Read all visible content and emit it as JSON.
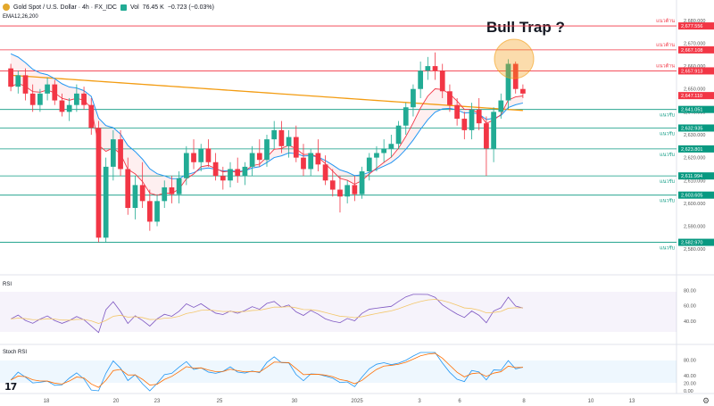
{
  "header": {
    "symbol": "Gold Spot / U.S. Dollar · 4h · FX_IDC",
    "vol_label": "Vol",
    "vol_value": "76.45 K",
    "change": "−0.723 (−0.03%)",
    "ema_label": "EMA12,26,200"
  },
  "annotation": "Bull Trap ?",
  "panes": {
    "rsi": "RSI",
    "stoch": "Stoch RSI"
  },
  "branding": "17",
  "settings_icon": "gear-icon",
  "colors": {
    "up": "#22ab94",
    "down": "#f23645",
    "ema_fast": "#f23645",
    "ema_mid": "#2196f3",
    "ema_slow": "#f39c12",
    "line": "#089981",
    "resist": "#f23645",
    "rsi": "#7e57c2",
    "osc_bg": "#e8f4fd"
  },
  "chart_data": {
    "type": "line",
    "title": "",
    "ylim": [
      2575,
      2685
    ],
    "y_ticks": [
      "2,680.000",
      "2,670.000",
      "2,660.000",
      "2,650.000",
      "2,640.000",
      "2,630.000",
      "2,620.000",
      "2,610.000",
      "2,600.000",
      "2,590.000",
      "2,580.000"
    ],
    "x_ticks": [
      "18",
      "20",
      "23",
      "25",
      "30",
      "2025",
      "3",
      "6",
      "8",
      "10",
      "13"
    ],
    "resistance_levels": [
      {
        "label": "แนวต้าน",
        "value": "2,677.556"
      },
      {
        "label": "แนวต้าน",
        "value": "2,667.108"
      },
      {
        "label": "แนวต้าน",
        "value": "2,657.913"
      }
    ],
    "support_levels": [
      {
        "label": "แนวรับ",
        "value": "2,641.051"
      },
      {
        "label": "แนวรับ",
        "value": "2,632.935"
      },
      {
        "label": "แนวรับ",
        "value": "2,623.801"
      },
      {
        "label": "แนวรับ",
        "value": "2,611.994"
      },
      {
        "label": "แนวรับ",
        "value": "2,603.605"
      },
      {
        "label": "แนวรับ",
        "value": "2,582.970"
      }
    ],
    "last_price": "2,647.110",
    "candles": [
      [
        2659,
        2661,
        2649,
        2651
      ],
      [
        2651,
        2658,
        2648,
        2656
      ],
      [
        2656,
        2659,
        2645,
        2648
      ],
      [
        2648,
        2652,
        2640,
        2643
      ],
      [
        2643,
        2650,
        2640,
        2648
      ],
      [
        2648,
        2655,
        2645,
        2652
      ],
      [
        2652,
        2654,
        2643,
        2645
      ],
      [
        2645,
        2648,
        2638,
        2640
      ],
      [
        2640,
        2646,
        2636,
        2643
      ],
      [
        2643,
        2652,
        2640,
        2648
      ],
      [
        2648,
        2651,
        2641,
        2643
      ],
      [
        2643,
        2646,
        2630,
        2633
      ],
      [
        2633,
        2636,
        2583,
        2585
      ],
      [
        2585,
        2620,
        2583,
        2616
      ],
      [
        2616,
        2632,
        2610,
        2628
      ],
      [
        2628,
        2632,
        2612,
        2615
      ],
      [
        2615,
        2620,
        2595,
        2598
      ],
      [
        2598,
        2612,
        2593,
        2608
      ],
      [
        2608,
        2618,
        2598,
        2601
      ],
      [
        2601,
        2606,
        2588,
        2592
      ],
      [
        2592,
        2604,
        2590,
        2601
      ],
      [
        2601,
        2610,
        2598,
        2607
      ],
      [
        2607,
        2612,
        2600,
        2604
      ],
      [
        2604,
        2614,
        2600,
        2611
      ],
      [
        2611,
        2625,
        2608,
        2622
      ],
      [
        2622,
        2628,
        2615,
        2618
      ],
      [
        2618,
        2626,
        2614,
        2624
      ],
      [
        2624,
        2628,
        2616,
        2618
      ],
      [
        2618,
        2622,
        2610,
        2612
      ],
      [
        2612,
        2616,
        2606,
        2610
      ],
      [
        2610,
        2618,
        2607,
        2615
      ],
      [
        2615,
        2620,
        2609,
        2612
      ],
      [
        2612,
        2618,
        2608,
        2616
      ],
      [
        2616,
        2625,
        2612,
        2622
      ],
      [
        2622,
        2628,
        2616,
        2619
      ],
      [
        2619,
        2630,
        2616,
        2628
      ],
      [
        2628,
        2636,
        2624,
        2632
      ],
      [
        2632,
        2636,
        2622,
        2625
      ],
      [
        2625,
        2632,
        2620,
        2629
      ],
      [
        2629,
        2634,
        2618,
        2620
      ],
      [
        2620,
        2626,
        2612,
        2615
      ],
      [
        2615,
        2624,
        2612,
        2622
      ],
      [
        2622,
        2628,
        2614,
        2617
      ],
      [
        2617,
        2621,
        2608,
        2610
      ],
      [
        2610,
        2615,
        2603,
        2606
      ],
      [
        2606,
        2612,
        2596,
        2603
      ],
      [
        2603,
        2610,
        2600,
        2608
      ],
      [
        2608,
        2612,
        2601,
        2604
      ],
      [
        2604,
        2616,
        2602,
        2614
      ],
      [
        2614,
        2622,
        2610,
        2620
      ],
      [
        2620,
        2625,
        2614,
        2622
      ],
      [
        2622,
        2628,
        2618,
        2624
      ],
      [
        2624,
        2630,
        2620,
        2626
      ],
      [
        2626,
        2636,
        2624,
        2634
      ],
      [
        2634,
        2644,
        2630,
        2642
      ],
      [
        2642,
        2652,
        2638,
        2650
      ],
      [
        2650,
        2662,
        2646,
        2658
      ],
      [
        2658,
        2664,
        2654,
        2660
      ],
      [
        2660,
        2666,
        2654,
        2658
      ],
      [
        2658,
        2661,
        2646,
        2649
      ],
      [
        2649,
        2652,
        2640,
        2643
      ],
      [
        2643,
        2646,
        2634,
        2637
      ],
      [
        2637,
        2640,
        2628,
        2632
      ],
      [
        2632,
        2644,
        2628,
        2641
      ],
      [
        2641,
        2646,
        2632,
        2635
      ],
      [
        2635,
        2638,
        2612,
        2624
      ],
      [
        2624,
        2642,
        2618,
        2640
      ],
      [
        2640,
        2648,
        2637,
        2645
      ],
      [
        2645,
        2663,
        2641,
        2661
      ],
      [
        2661,
        2662,
        2648,
        2650
      ],
      [
        2650,
        2652,
        2646,
        2648
      ]
    ]
  }
}
